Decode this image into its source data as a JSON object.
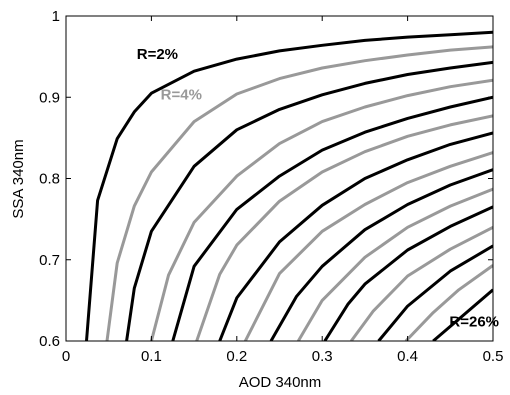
{
  "chart_data": {
    "type": "line",
    "title": "",
    "xlabel": "AOD 340nm",
    "ylabel": "SSA 340nm",
    "xlim": [
      0,
      0.5
    ],
    "ylim": [
      0.6,
      1.0
    ],
    "xticks": [
      "0",
      "0.1",
      "0.2",
      "0.3",
      "0.4",
      "0.5"
    ],
    "yticks": [
      "0.6",
      "0.7",
      "0.8",
      "0.9",
      "1"
    ],
    "grid": false,
    "colors": {
      "black": "#000000",
      "gray": "#999999"
    },
    "annotations": [
      {
        "text": "R=2%",
        "x": 0.107,
        "y": 0.947,
        "color": "black"
      },
      {
        "text": "R=4%",
        "x": 0.135,
        "y": 0.897,
        "color": "gray"
      },
      {
        "text": "R=26%",
        "x": 0.478,
        "y": 0.618,
        "color": "black"
      }
    ],
    "series": [
      {
        "color": "black",
        "points": [
          [
            0.024,
            0.6
          ],
          [
            0.037,
            0.773
          ],
          [
            0.06,
            0.849
          ],
          [
            0.08,
            0.882
          ],
          [
            0.1,
            0.905
          ],
          [
            0.15,
            0.932
          ],
          [
            0.2,
            0.947
          ],
          [
            0.25,
            0.957
          ],
          [
            0.3,
            0.964
          ],
          [
            0.35,
            0.97
          ],
          [
            0.4,
            0.974
          ],
          [
            0.45,
            0.977
          ],
          [
            0.5,
            0.98
          ]
        ]
      },
      {
        "color": "gray",
        "points": [
          [
            0.048,
            0.6
          ],
          [
            0.06,
            0.696
          ],
          [
            0.08,
            0.766
          ],
          [
            0.1,
            0.808
          ],
          [
            0.15,
            0.87
          ],
          [
            0.2,
            0.904
          ],
          [
            0.25,
            0.923
          ],
          [
            0.3,
            0.936
          ],
          [
            0.35,
            0.945
          ],
          [
            0.4,
            0.952
          ],
          [
            0.45,
            0.958
          ],
          [
            0.5,
            0.962
          ]
        ]
      },
      {
        "color": "black",
        "points": [
          [
            0.071,
            0.6
          ],
          [
            0.08,
            0.665
          ],
          [
            0.1,
            0.735
          ],
          [
            0.15,
            0.815
          ],
          [
            0.2,
            0.86
          ],
          [
            0.25,
            0.885
          ],
          [
            0.3,
            0.903
          ],
          [
            0.35,
            0.917
          ],
          [
            0.4,
            0.928
          ],
          [
            0.45,
            0.936
          ],
          [
            0.5,
            0.943
          ]
        ]
      },
      {
        "color": "gray",
        "points": [
          [
            0.1,
            0.6
          ],
          [
            0.12,
            0.681
          ],
          [
            0.15,
            0.746
          ],
          [
            0.2,
            0.803
          ],
          [
            0.25,
            0.843
          ],
          [
            0.3,
            0.87
          ],
          [
            0.35,
            0.888
          ],
          [
            0.4,
            0.902
          ],
          [
            0.45,
            0.913
          ],
          [
            0.5,
            0.921
          ]
        ]
      },
      {
        "color": "black",
        "points": [
          [
            0.125,
            0.6
          ],
          [
            0.15,
            0.692
          ],
          [
            0.2,
            0.762
          ],
          [
            0.25,
            0.803
          ],
          [
            0.3,
            0.835
          ],
          [
            0.35,
            0.857
          ],
          [
            0.4,
            0.874
          ],
          [
            0.45,
            0.888
          ],
          [
            0.5,
            0.9
          ]
        ]
      },
      {
        "color": "gray",
        "points": [
          [
            0.153,
            0.6
          ],
          [
            0.18,
            0.682
          ],
          [
            0.2,
            0.718
          ],
          [
            0.25,
            0.772
          ],
          [
            0.3,
            0.808
          ],
          [
            0.35,
            0.833
          ],
          [
            0.4,
            0.852
          ],
          [
            0.45,
            0.866
          ],
          [
            0.5,
            0.877
          ]
        ]
      },
      {
        "color": "black",
        "points": [
          [
            0.18,
            0.6
          ],
          [
            0.2,
            0.653
          ],
          [
            0.25,
            0.722
          ],
          [
            0.3,
            0.767
          ],
          [
            0.35,
            0.8
          ],
          [
            0.4,
            0.823
          ],
          [
            0.45,
            0.842
          ],
          [
            0.5,
            0.856
          ]
        ]
      },
      {
        "color": "gray",
        "points": [
          [
            0.21,
            0.6
          ],
          [
            0.25,
            0.683
          ],
          [
            0.3,
            0.735
          ],
          [
            0.35,
            0.768
          ],
          [
            0.4,
            0.795
          ],
          [
            0.45,
            0.815
          ],
          [
            0.5,
            0.832
          ]
        ]
      },
      {
        "color": "black",
        "points": [
          [
            0.24,
            0.6
          ],
          [
            0.27,
            0.655
          ],
          [
            0.3,
            0.692
          ],
          [
            0.35,
            0.737
          ],
          [
            0.4,
            0.768
          ],
          [
            0.45,
            0.792
          ],
          [
            0.5,
            0.811
          ]
        ]
      },
      {
        "color": "gray",
        "points": [
          [
            0.272,
            0.6
          ],
          [
            0.3,
            0.65
          ],
          [
            0.35,
            0.703
          ],
          [
            0.4,
            0.74
          ],
          [
            0.45,
            0.766
          ],
          [
            0.5,
            0.787
          ]
        ]
      },
      {
        "color": "black",
        "points": [
          [
            0.303,
            0.6
          ],
          [
            0.33,
            0.645
          ],
          [
            0.35,
            0.67
          ],
          [
            0.4,
            0.712
          ],
          [
            0.45,
            0.741
          ],
          [
            0.5,
            0.765
          ]
        ]
      },
      {
        "color": "gray",
        "points": [
          [
            0.334,
            0.6
          ],
          [
            0.36,
            0.637
          ],
          [
            0.4,
            0.68
          ],
          [
            0.45,
            0.713
          ],
          [
            0.5,
            0.74
          ]
        ]
      },
      {
        "color": "black",
        "points": [
          [
            0.366,
            0.6
          ],
          [
            0.4,
            0.643
          ],
          [
            0.45,
            0.686
          ],
          [
            0.5,
            0.717
          ]
        ]
      },
      {
        "color": "gray",
        "points": [
          [
            0.398,
            0.6
          ],
          [
            0.43,
            0.635
          ],
          [
            0.46,
            0.663
          ],
          [
            0.5,
            0.693
          ]
        ]
      },
      {
        "color": "black",
        "points": [
          [
            0.43,
            0.6
          ],
          [
            0.46,
            0.627
          ],
          [
            0.5,
            0.663
          ]
        ]
      }
    ]
  }
}
